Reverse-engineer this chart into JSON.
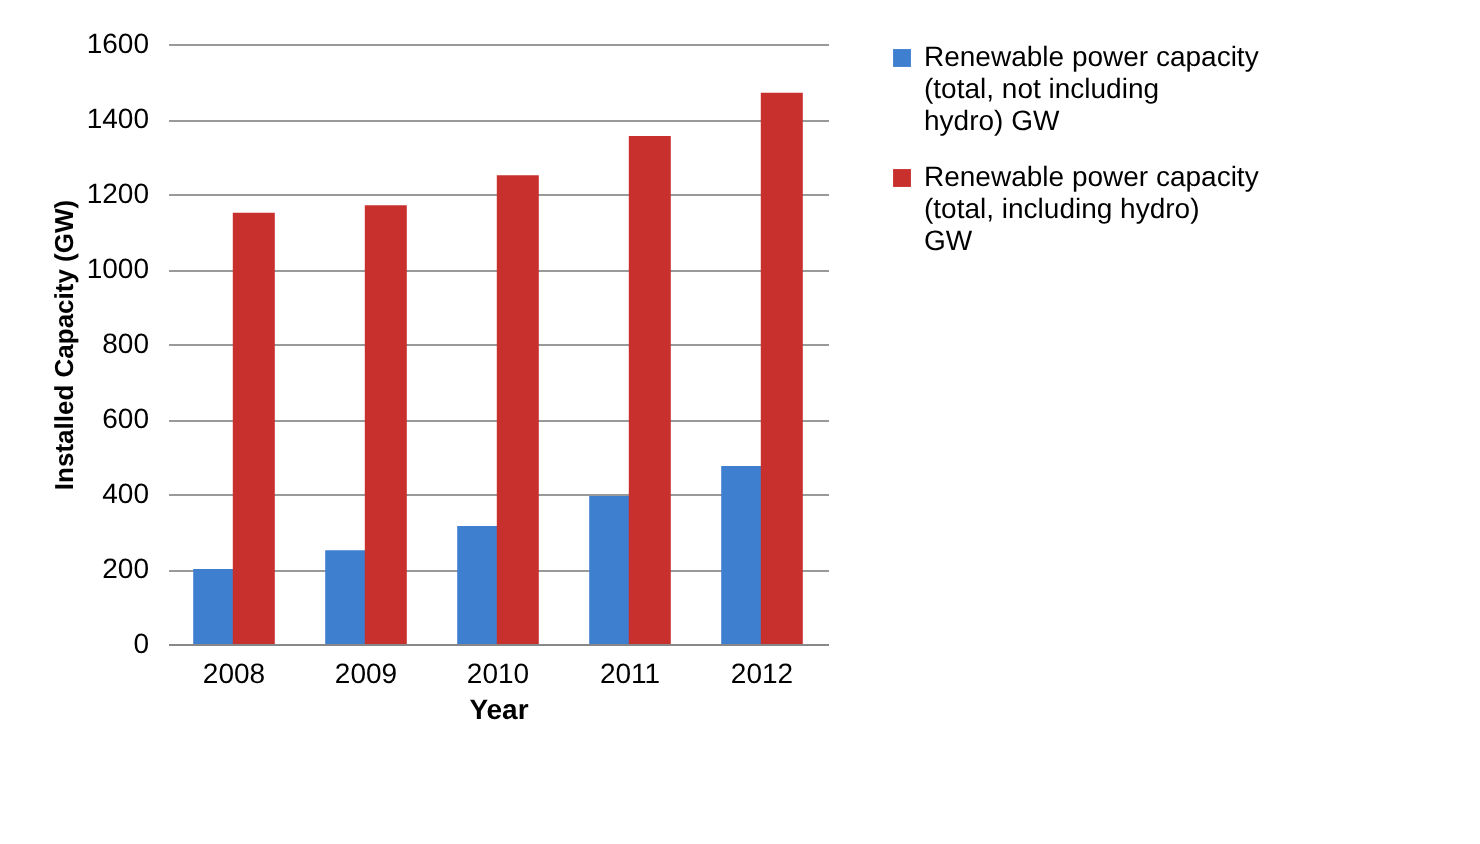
{
  "chart_data": {
    "type": "bar",
    "xlabel": "Year",
    "ylabel": "Installed Capacity (GW)",
    "categories": [
      "2008",
      "2009",
      "2010",
      "2011",
      "2012"
    ],
    "series": [
      {
        "name": "Renewable power capacity (total, not including hydro) GW",
        "color": "#3f7fcf",
        "values": [
          200,
          250,
          315,
          395,
          475
        ]
      },
      {
        "name": "Renewable power capacity (total, including hydro) GW",
        "color": "#c8302e",
        "values": [
          1150,
          1170,
          1250,
          1355,
          1470
        ]
      }
    ],
    "ylim": [
      0,
      1600
    ],
    "yticks": [
      0,
      200,
      400,
      600,
      800,
      1000,
      1200,
      1400,
      1600
    ],
    "grid": "y",
    "legend": "right"
  }
}
